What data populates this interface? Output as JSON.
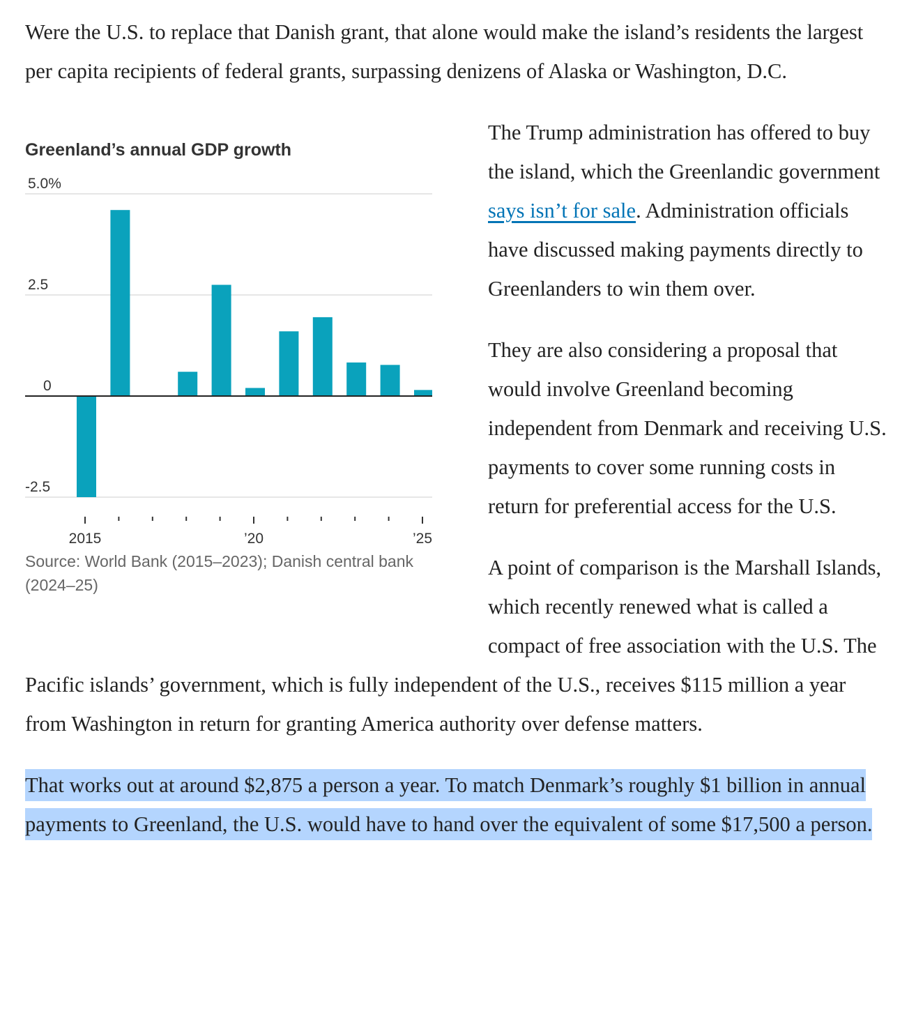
{
  "article": {
    "p1": "Were the U.S. to replace that Danish grant, that alone would make the island’s residents the largest per capita recipients of federal grants, surpassing denizens of Alaska or Washington, D.C.",
    "p2_before": "The Trump administration has offered to buy the island, which the Greenlandic government ",
    "p2_link": "says isn’t for sale",
    "p2_after": ". Administration officials have discussed making payments directly to Greenlanders to win them over.",
    "p3": "They are also considering a proposal that would involve Greenland becoming independent from Denmark and receiving U.S. payments to cover some running costs in return for preferential access for the U.S.",
    "p4": "A point of comparison is the Marshall Islands, which recently renewed what is called a compact of free association with the U.S. The Pacific islands’ government, which is fully independent of the U.S., receives $115 million a year from Washington in return for granting America authority over defense matters.",
    "p5_highlighted": "That works out at around $2,875 a person a year. To match Denmark’s roughly $1 billion in annual payments to Greenland, the U.S. would have to hand over the equivalent of some $17,500 a person."
  },
  "colors": {
    "bar": "#0aa2bc",
    "link": "#0274b6",
    "highlight": "#b4d5fe"
  },
  "chart_data": {
    "type": "bar",
    "title": "Greenland’s annual GDP growth",
    "source": "Source: World Bank (2015–2023); Danish central bank (2024–25)",
    "categories": [
      2015,
      2016,
      2017,
      2018,
      2019,
      2020,
      2021,
      2022,
      2023,
      2024,
      2025
    ],
    "values": [
      -2.5,
      4.6,
      0,
      0.6,
      2.75,
      0.2,
      1.6,
      1.95,
      0.83,
      0.77,
      0.15
    ],
    "ylim": [
      -2.5,
      5.0
    ],
    "yticks": [
      {
        "value": 5.0,
        "label": "5.0%"
      },
      {
        "value": 2.5,
        "label": "2.5"
      },
      {
        "value": 0,
        "label": "0"
      },
      {
        "value": -2.5,
        "label": "-2.5"
      }
    ],
    "xtick_labels": [
      {
        "year": 2015,
        "label": "2015"
      },
      {
        "year": 2020,
        "label": "’20"
      },
      {
        "year": 2025,
        "label": "’25"
      }
    ],
    "xlabel": "",
    "ylabel": "",
    "grid": true
  }
}
